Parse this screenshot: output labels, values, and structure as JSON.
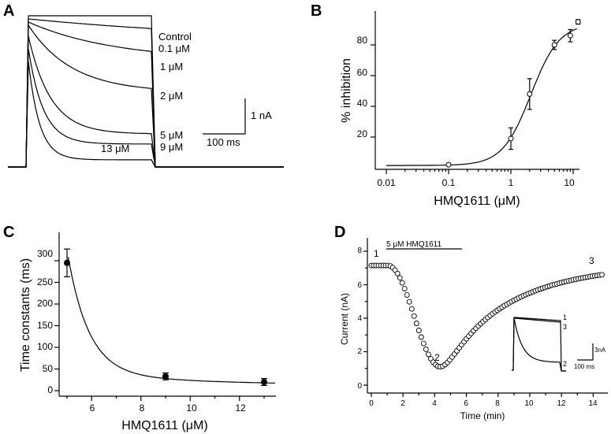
{
  "panels": [
    {
      "id": "A",
      "label": "A"
    },
    {
      "id": "B",
      "label": "B"
    },
    {
      "id": "C",
      "label": "C"
    },
    {
      "id": "D",
      "label": "D"
    }
  ],
  "chart_data": [
    {
      "panel": "A",
      "type": "line",
      "title": "",
      "series": [
        {
          "name": "Control",
          "plateau_current_relative": 0.9
        },
        {
          "name": "0.1 μM",
          "plateau_current_relative": 0.86
        },
        {
          "name": "1 μM",
          "plateau_current_relative": 0.74
        },
        {
          "name": "2 μM",
          "plateau_current_relative": 0.52
        },
        {
          "name": "5 μM",
          "plateau_current_relative": 0.23
        },
        {
          "name": "9 μM",
          "plateau_current_relative": 0.16
        },
        {
          "name": "13 μM",
          "plateau_current_relative": 0.05
        }
      ],
      "scale_bar": {
        "current_label": "1 nA",
        "time_label": "100 ms"
      }
    },
    {
      "panel": "B",
      "type": "scatter",
      "xlabel": "HMQ1611 (μM)",
      "ylabel": "% inhibition",
      "xscale": "log",
      "xlim": [
        0.01,
        12
      ],
      "ylim": [
        0,
        95
      ],
      "x_ticks": [
        "0.01",
        "0.1",
        "1",
        "10"
      ],
      "y_ticks": [
        "20",
        "40",
        "60",
        "80"
      ],
      "points": [
        {
          "x": 0.1,
          "y": 2,
          "err": 0
        },
        {
          "x": 1,
          "y": 19,
          "err": 7
        },
        {
          "x": 2,
          "y": 48,
          "err": 10
        },
        {
          "x": 5,
          "y": 80,
          "err": 3
        },
        {
          "x": 9,
          "y": 86,
          "err": 4
        },
        {
          "x": 12,
          "y": 95,
          "err": 1.5
        }
      ],
      "fit": {
        "model": "Hill",
        "IC50": 2.1,
        "hill": 1.9,
        "bottom": 1.5,
        "top": 94
      }
    },
    {
      "panel": "C",
      "type": "scatter",
      "xlabel": "HMQ1611 (μM)",
      "ylabel": "Time constants (ms)",
      "xlim": [
        4.7,
        13.5
      ],
      "ylim": [
        0,
        330
      ],
      "x_ticks": [
        "6",
        "8",
        "10",
        "12"
      ],
      "y_ticks": [
        "0",
        "50",
        "100",
        "150",
        "200",
        "250",
        "300"
      ],
      "points": [
        {
          "x": 5,
          "y": 295,
          "err": 32
        },
        {
          "x": 9,
          "y": 33,
          "err": 8
        },
        {
          "x": 13,
          "y": 20,
          "err": 8
        }
      ]
    },
    {
      "panel": "D",
      "type": "scatter",
      "xlabel": "Time (min)",
      "ylabel": "Current (nA)",
      "xlim": [
        0,
        15
      ],
      "ylim": [
        0,
        8.2
      ],
      "x_ticks": [
        "0",
        "2",
        "4",
        "6",
        "8",
        "10",
        "12",
        "14"
      ],
      "y_ticks": [
        "0",
        "2",
        "4",
        "6",
        "8"
      ],
      "drug_bar_label": "5 μM HMQ1611",
      "drug_bar_range": [
        0.3,
        4.5
      ],
      "time_point_labels": [
        "1",
        "2",
        "3"
      ],
      "inset": {
        "trace_labels": [
          "1",
          "3",
          "2"
        ],
        "scale_current_label": "3nA",
        "scale_time_label": "100 ms"
      },
      "series_model": {
        "baseline": 7.15,
        "onset_min": 1.05,
        "min_current": 1.1,
        "min_time": 4.35,
        "recovery_plateau": 7.2,
        "recovery_tau_min": 4.4,
        "sample_interval_min": 0.15,
        "end_min": 14.6
      }
    }
  ]
}
